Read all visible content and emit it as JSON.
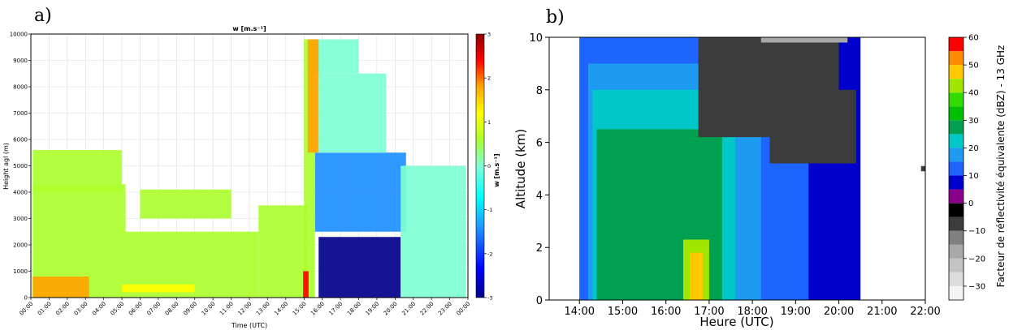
{
  "panels": {
    "a": {
      "letter": "a)"
    },
    "b": {
      "letter": "b)"
    }
  },
  "chart_data": [
    {
      "type": "heatmap",
      "panel": "a)",
      "title": "w [m.s⁻¹]",
      "xlabel": "Time (UTC)",
      "ylabel": "Height agl (m)",
      "x_ticks": [
        "00:00",
        "01:00",
        "02:00",
        "03:00",
        "04:00",
        "05:00",
        "06:00",
        "07:00",
        "08:00",
        "09:00",
        "10:00",
        "11:00",
        "12:00",
        "13:00",
        "14:00",
        "15:00",
        "16:00",
        "17:00",
        "18:00",
        "19:00",
        "20:00",
        "21:00",
        "22:00",
        "23:00",
        "00:00"
      ],
      "xlim_hours": [
        0,
        24
      ],
      "ylim": [
        0,
        10000
      ],
      "y_ticks": [
        0,
        1000,
        2000,
        3000,
        4000,
        5000,
        6000,
        7000,
        8000,
        9000,
        10000
      ],
      "colorbar": {
        "label": "w [m.s⁻¹]",
        "range": [
          -3,
          3
        ],
        "ticks": [
          -3,
          -2,
          -1,
          0,
          1,
          2,
          3
        ],
        "colors": [
          "#00008b",
          "#0000ff",
          "#1e90ff",
          "#00ffff",
          "#7fffd4",
          "#adff2f",
          "#ffff00",
          "#ffa500",
          "#ff0000",
          "#8b0000"
        ]
      },
      "grid": true,
      "regions": [
        {
          "t0": 0.1,
          "t1": 5.2,
          "h0": 0,
          "h1": 4300,
          "w": 0.1
        },
        {
          "t0": 5.2,
          "t1": 12.5,
          "h0": 0,
          "h1": 2500,
          "w": 0.3
        },
        {
          "t0": 12.5,
          "t1": 15.2,
          "h0": 0,
          "h1": 3500,
          "w": 0.4
        },
        {
          "t0": 0.1,
          "t1": 3.2,
          "h0": 0,
          "h1": 800,
          "w": 1.2
        },
        {
          "t0": 5.0,
          "t1": 9.0,
          "h0": 200,
          "h1": 500,
          "w": 0.9
        },
        {
          "t0": 0.1,
          "t1": 5.0,
          "h0": 4000,
          "h1": 5600,
          "w": 0.2
        },
        {
          "t0": 6.0,
          "t1": 11.0,
          "h0": 3000,
          "h1": 4100,
          "w": 0.0
        },
        {
          "t0": 15.6,
          "t1": 20.6,
          "h0": 2500,
          "h1": 5500,
          "w": -1.6
        },
        {
          "t0": 15.8,
          "t1": 20.3,
          "h0": 0,
          "h1": 2300,
          "w": -2.8
        },
        {
          "t0": 15.8,
          "t1": 19.5,
          "h0": 5500,
          "h1": 8500,
          "w": -0.5
        },
        {
          "t0": 15.5,
          "t1": 18.0,
          "h0": 8500,
          "h1": 9800,
          "w": -0.3
        },
        {
          "t0": 20.3,
          "t1": 23.9,
          "h0": 0,
          "h1": 5000,
          "w": -0.2
        },
        {
          "t0": 15.0,
          "t1": 15.6,
          "h0": 0,
          "h1": 9800,
          "w": 0.0
        },
        {
          "t0": 15.2,
          "t1": 15.8,
          "h0": 5500,
          "h1": 9800,
          "w": 1.8
        },
        {
          "t0": 14.95,
          "t1": 15.25,
          "h0": 0,
          "h1": 1000,
          "w": 2.3
        }
      ]
    },
    {
      "type": "heatmap",
      "panel": "b)",
      "xlabel": "Heure (UTC)",
      "ylabel": "Altitude (km)",
      "x_ticks": [
        "14:00",
        "15:00",
        "16:00",
        "17:00",
        "18:00",
        "19:00",
        "20:00",
        "21:00",
        "22:00"
      ],
      "xlim_hours": [
        13.3,
        22.0
      ],
      "ylim": [
        0,
        10
      ],
      "y_ticks": [
        0,
        2,
        4,
        6,
        8,
        10
      ],
      "colorbar": {
        "label": "Facteur de réflectivité équivalente (dBZ) - 13 GHz",
        "range": [
          -35,
          60
        ],
        "ticks": [
          -30,
          -20,
          -10,
          0,
          10,
          20,
          30,
          40,
          50,
          60
        ],
        "levels": [
          {
            "from": -35,
            "to": -30,
            "color": "#f4f4f4"
          },
          {
            "from": -30,
            "to": -25,
            "color": "#dcdcdc"
          },
          {
            "from": -25,
            "to": -20,
            "color": "#c4c4c4"
          },
          {
            "from": -20,
            "to": -15,
            "color": "#a8a8a8"
          },
          {
            "from": -15,
            "to": -10,
            "color": "#808080"
          },
          {
            "from": -10,
            "to": -5,
            "color": "#3c3c3c"
          },
          {
            "from": -5,
            "to": 0,
            "color": "#000000"
          },
          {
            "from": 0,
            "to": 5,
            "color": "#8b008b"
          },
          {
            "from": 5,
            "to": 10,
            "color": "#0000cd"
          },
          {
            "from": 10,
            "to": 15,
            "color": "#1e64ff"
          },
          {
            "from": 15,
            "to": 20,
            "color": "#1e9bf0"
          },
          {
            "from": 20,
            "to": 25,
            "color": "#00c8c8"
          },
          {
            "from": 25,
            "to": 30,
            "color": "#00a050"
          },
          {
            "from": 30,
            "to": 35,
            "color": "#00c000"
          },
          {
            "from": 35,
            "to": 40,
            "color": "#32dc00"
          },
          {
            "from": 40,
            "to": 45,
            "color": "#a0e600"
          },
          {
            "from": 45,
            "to": 50,
            "color": "#ffc800"
          },
          {
            "from": 50,
            "to": 55,
            "color": "#ff8c00"
          },
          {
            "from": 55,
            "to": 60,
            "color": "#ff0000"
          }
        ]
      },
      "grid": false,
      "regions": [
        {
          "t0": 14.0,
          "t1": 20.5,
          "h0": 0,
          "h1": 10,
          "dbz": 7
        },
        {
          "t0": 14.0,
          "t1": 19.3,
          "h0": 0,
          "h1": 10,
          "dbz": 12
        },
        {
          "t0": 14.2,
          "t1": 18.2,
          "h0": 0,
          "h1": 9.0,
          "dbz": 17
        },
        {
          "t0": 14.3,
          "t1": 17.6,
          "h0": 0,
          "h1": 8.0,
          "dbz": 22
        },
        {
          "t0": 14.4,
          "t1": 17.3,
          "h0": 0,
          "h1": 6.5,
          "dbz": 27
        },
        {
          "t0": 16.4,
          "t1": 17.0,
          "h0": 0,
          "h1": 2.3,
          "dbz": 42
        },
        {
          "t0": 16.55,
          "t1": 16.85,
          "h0": 0,
          "h1": 1.8,
          "dbz": 47
        },
        {
          "t0": 16.75,
          "t1": 20.0,
          "h0": 6.2,
          "h1": 10,
          "dbz": -7
        },
        {
          "t0": 18.4,
          "t1": 20.4,
          "h0": 5.2,
          "h1": 8.0,
          "dbz": -7
        },
        {
          "t0": 18.2,
          "t1": 20.2,
          "h0": 9.8,
          "h1": 10,
          "dbz": -17
        },
        {
          "t0": 21.9,
          "t1": 22.0,
          "h0": 4.9,
          "h1": 5.1,
          "dbz": -7
        }
      ]
    }
  ]
}
